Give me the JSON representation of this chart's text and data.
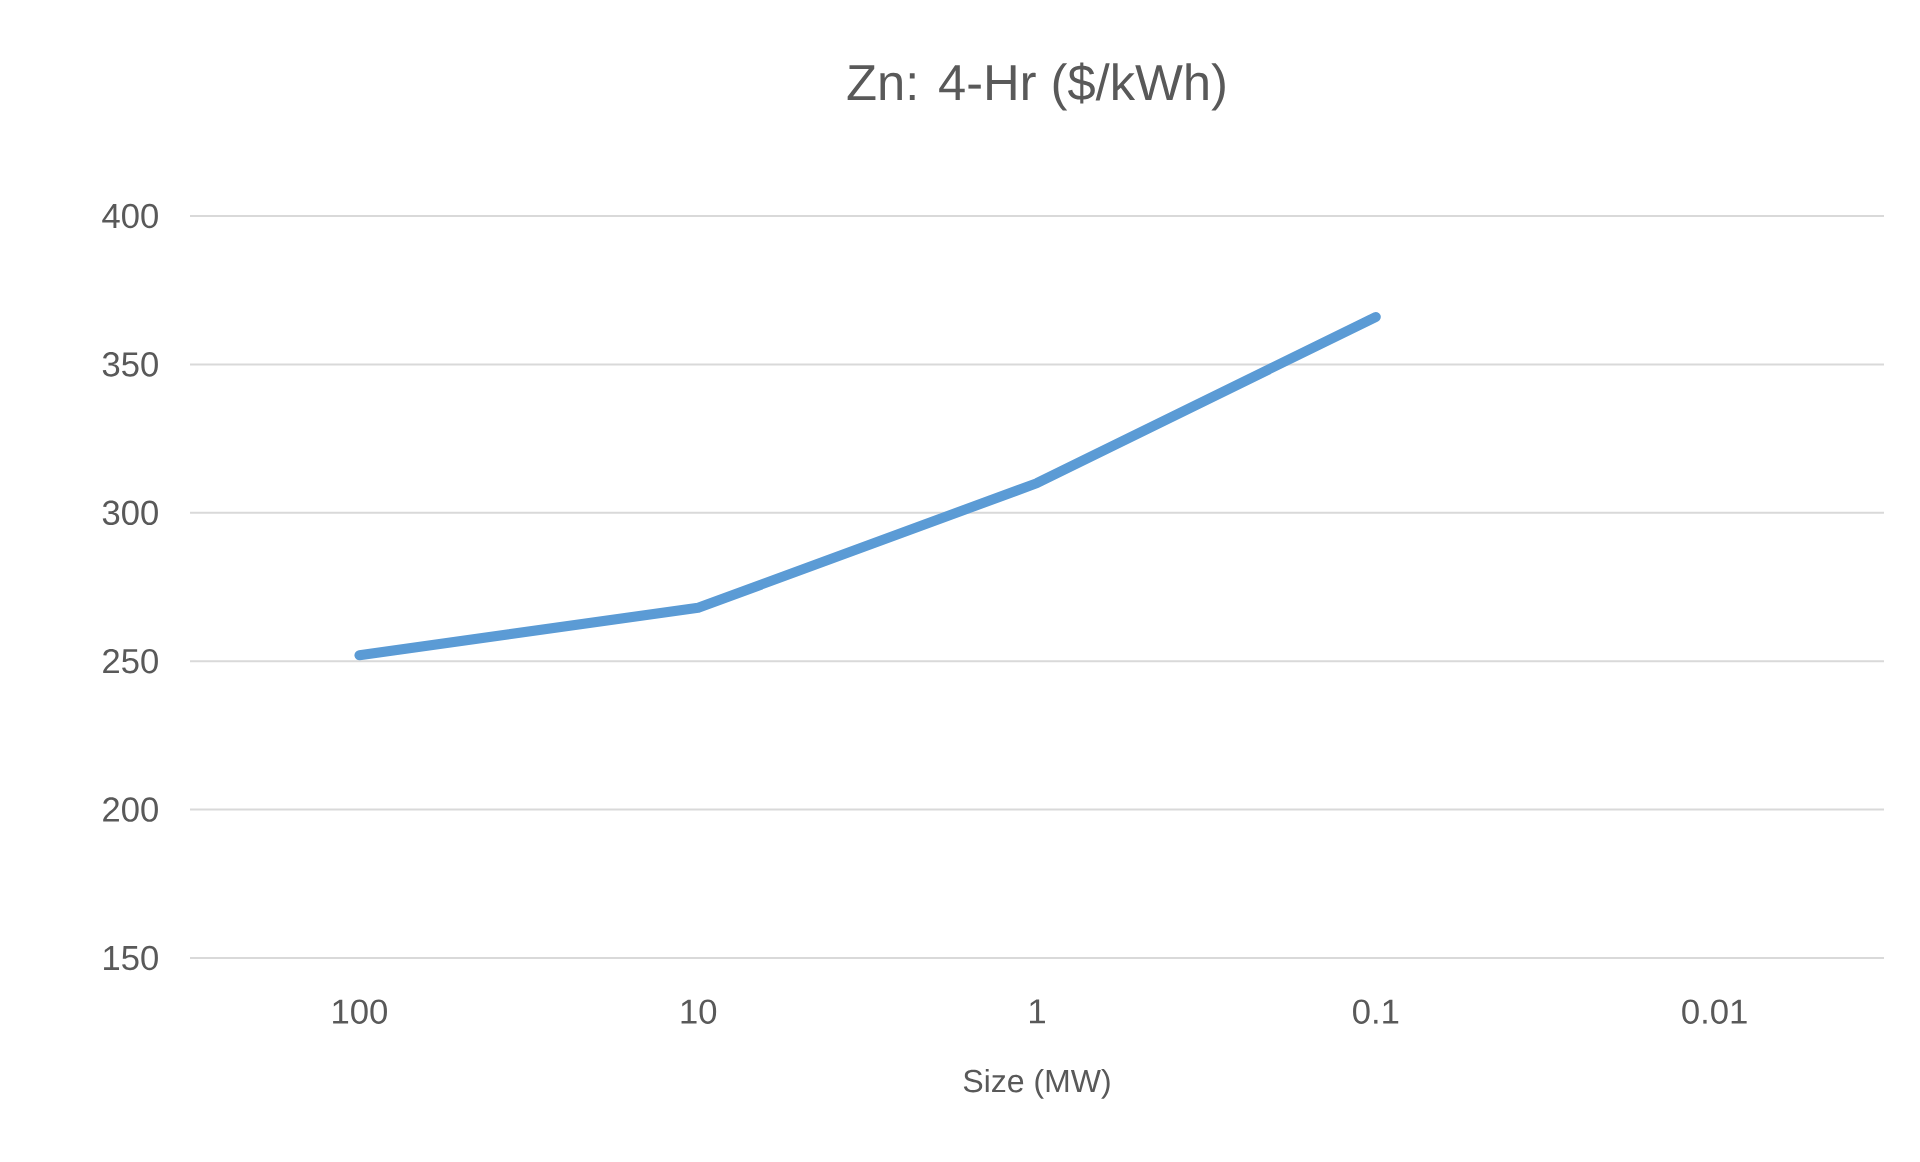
{
  "chart_data": {
    "type": "line",
    "title": "Zn: 4-Hr ($/kWh)",
    "xlabel": "Size (MW)",
    "categories": [
      "100",
      "10",
      "1",
      "0.1",
      "0.01"
    ],
    "series": [
      {
        "color": "#5b9bd5",
        "values": [
          252,
          268,
          310,
          366,
          null
        ]
      }
    ],
    "ylim": [
      150,
      400
    ],
    "yticks": [
      150,
      200,
      250,
      300,
      350,
      400
    ],
    "grid": "y"
  }
}
